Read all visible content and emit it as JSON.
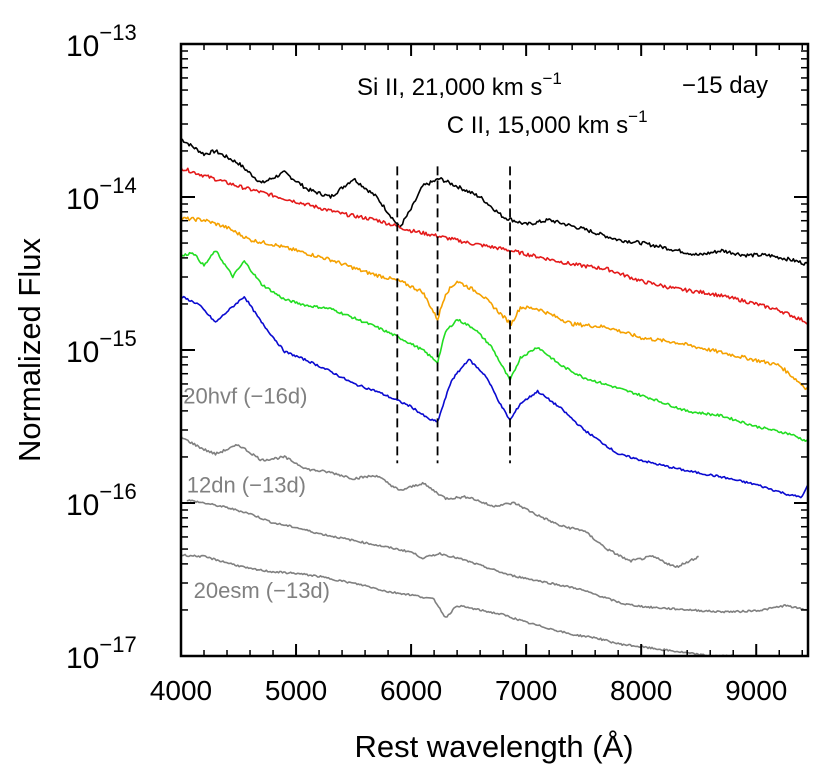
{
  "chart_data": {
    "type": "line",
    "title": "",
    "xlabel": "Rest wavelength (Å)",
    "ylabel": "Normalized Flux",
    "xlim": [
      4000,
      9450
    ],
    "ylim_log10": [
      -17,
      -13
    ],
    "y_scale": "log",
    "grid": false,
    "x_ticks": [
      4000,
      5000,
      6000,
      7000,
      8000,
      9000
    ],
    "x_tick_labels": [
      "4000",
      "5000",
      "6000",
      "7000",
      "8000",
      "9000"
    ],
    "y_ticks": [
      {
        "base": "10",
        "exp": "−13",
        "value": -13
      },
      {
        "base": "10",
        "exp": "−14",
        "value": -14
      },
      {
        "base": "10",
        "exp": "−15",
        "value": -15
      },
      {
        "base": "10",
        "exp": "−16",
        "value": -16
      },
      {
        "base": "10",
        "exp": "−17",
        "value": -17
      }
    ],
    "epoch_label": "−15 day",
    "line_markers": [
      {
        "wavelengths": [
          5880
        ],
        "label": "Si II, 21,000 km s",
        "sup": "−1",
        "label_at": [
          5530,
          16.0
        ]
      },
      {
        "wavelengths": [
          6230,
          6860
        ],
        "label": "C II, 15,000 km s",
        "sup": "−1",
        "label_at": [
          6310,
          16.6
        ]
      }
    ],
    "marker_ylog_range": [
      -13.8,
      -15.74
    ],
    "series": [
      {
        "color": "#000000",
        "noise": 0.012,
        "points": [
          [
            4000,
            -13.62
          ],
          [
            4200,
            -13.72
          ],
          [
            4300,
            -13.7
          ],
          [
            4500,
            -13.78
          ],
          [
            4700,
            -13.91
          ],
          [
            4900,
            -13.84
          ],
          [
            5100,
            -13.95
          ],
          [
            5300,
            -14.0
          ],
          [
            5500,
            -13.88
          ],
          [
            5700,
            -14.0
          ],
          [
            5800,
            -14.1
          ],
          [
            5900,
            -14.2
          ],
          [
            6000,
            -14.08
          ],
          [
            6100,
            -13.93
          ],
          [
            6250,
            -13.88
          ],
          [
            6400,
            -13.93
          ],
          [
            6600,
            -14.0
          ],
          [
            6800,
            -14.13
          ],
          [
            7000,
            -14.18
          ],
          [
            7200,
            -14.15
          ],
          [
            7500,
            -14.21
          ],
          [
            7800,
            -14.28
          ],
          [
            8000,
            -14.3
          ],
          [
            8200,
            -14.33
          ],
          [
            8500,
            -14.38
          ],
          [
            8700,
            -14.35
          ],
          [
            8900,
            -14.38
          ],
          [
            9100,
            -14.38
          ],
          [
            9300,
            -14.41
          ],
          [
            9450,
            -14.44
          ]
        ]
      },
      {
        "color": "#e41a1a",
        "noise": 0.012,
        "points": [
          [
            4000,
            -13.81
          ],
          [
            4200,
            -13.86
          ],
          [
            4500,
            -13.93
          ],
          [
            4800,
            -13.99
          ],
          [
            5100,
            -14.05
          ],
          [
            5400,
            -14.11
          ],
          [
            5700,
            -14.15
          ],
          [
            6000,
            -14.22
          ],
          [
            6200,
            -14.25
          ],
          [
            6500,
            -14.3
          ],
          [
            6800,
            -14.34
          ],
          [
            7100,
            -14.39
          ],
          [
            7400,
            -14.44
          ],
          [
            7700,
            -14.47
          ],
          [
            8000,
            -14.55
          ],
          [
            8300,
            -14.6
          ],
          [
            8600,
            -14.63
          ],
          [
            8900,
            -14.68
          ],
          [
            9200,
            -14.74
          ],
          [
            9450,
            -14.82
          ]
        ]
      },
      {
        "color": "#f5a100",
        "noise": 0.012,
        "points": [
          [
            4000,
            -14.14
          ],
          [
            4200,
            -14.15
          ],
          [
            4400,
            -14.2
          ],
          [
            4600,
            -14.28
          ],
          [
            4800,
            -14.31
          ],
          [
            5000,
            -14.35
          ],
          [
            5300,
            -14.41
          ],
          [
            5600,
            -14.49
          ],
          [
            5900,
            -14.55
          ],
          [
            6100,
            -14.62
          ],
          [
            6230,
            -14.8
          ],
          [
            6300,
            -14.63
          ],
          [
            6400,
            -14.55
          ],
          [
            6600,
            -14.63
          ],
          [
            6800,
            -14.78
          ],
          [
            6870,
            -14.83
          ],
          [
            6950,
            -14.72
          ],
          [
            7100,
            -14.73
          ],
          [
            7400,
            -14.83
          ],
          [
            7700,
            -14.85
          ],
          [
            8000,
            -14.92
          ],
          [
            8300,
            -14.95
          ],
          [
            8600,
            -15.0
          ],
          [
            8900,
            -15.05
          ],
          [
            9200,
            -15.1
          ],
          [
            9450,
            -15.26
          ]
        ]
      },
      {
        "color": "#22dd22",
        "noise": 0.008,
        "points": [
          [
            4000,
            -14.39
          ],
          [
            4100,
            -14.36
          ],
          [
            4200,
            -14.45
          ],
          [
            4300,
            -14.35
          ],
          [
            4450,
            -14.52
          ],
          [
            4550,
            -14.42
          ],
          [
            4700,
            -14.57
          ],
          [
            4900,
            -14.67
          ],
          [
            5100,
            -14.71
          ],
          [
            5300,
            -14.73
          ],
          [
            5500,
            -14.79
          ],
          [
            5700,
            -14.85
          ],
          [
            5900,
            -14.92
          ],
          [
            6100,
            -15.0
          ],
          [
            6230,
            -15.08
          ],
          [
            6300,
            -14.88
          ],
          [
            6400,
            -14.8
          ],
          [
            6550,
            -14.86
          ],
          [
            6700,
            -14.98
          ],
          [
            6860,
            -15.2
          ],
          [
            6950,
            -15.05
          ],
          [
            7100,
            -14.98
          ],
          [
            7300,
            -15.1
          ],
          [
            7500,
            -15.18
          ],
          [
            7800,
            -15.25
          ],
          [
            8100,
            -15.32
          ],
          [
            8400,
            -15.4
          ],
          [
            8700,
            -15.43
          ],
          [
            9000,
            -15.5
          ],
          [
            9300,
            -15.55
          ],
          [
            9450,
            -15.6
          ]
        ]
      },
      {
        "color": "#0a0ad0",
        "noise": 0.007,
        "points": [
          [
            4000,
            -14.65
          ],
          [
            4150,
            -14.7
          ],
          [
            4300,
            -14.82
          ],
          [
            4400,
            -14.75
          ],
          [
            4550,
            -14.65
          ],
          [
            4700,
            -14.82
          ],
          [
            4900,
            -15.01
          ],
          [
            5100,
            -15.07
          ],
          [
            5300,
            -15.14
          ],
          [
            5500,
            -15.22
          ],
          [
            5700,
            -15.27
          ],
          [
            5880,
            -15.33
          ],
          [
            6000,
            -15.37
          ],
          [
            6150,
            -15.45
          ],
          [
            6230,
            -15.47
          ],
          [
            6350,
            -15.2
          ],
          [
            6500,
            -15.06
          ],
          [
            6650,
            -15.17
          ],
          [
            6780,
            -15.36
          ],
          [
            6860,
            -15.46
          ],
          [
            6950,
            -15.35
          ],
          [
            7100,
            -15.27
          ],
          [
            7300,
            -15.38
          ],
          [
            7500,
            -15.52
          ],
          [
            7800,
            -15.68
          ],
          [
            8100,
            -15.74
          ],
          [
            8400,
            -15.79
          ],
          [
            8700,
            -15.83
          ],
          [
            9000,
            -15.88
          ],
          [
            9300,
            -15.95
          ],
          [
            9400,
            -15.96
          ],
          [
            9450,
            -15.88
          ]
        ]
      },
      {
        "color": "#808080",
        "noise": 0.008,
        "points": [
          [
            4000,
            -15.57
          ],
          [
            4200,
            -15.65
          ],
          [
            4300,
            -15.68
          ],
          [
            4500,
            -15.62
          ],
          [
            4700,
            -15.72
          ],
          [
            4900,
            -15.7
          ],
          [
            5100,
            -15.78
          ],
          [
            5300,
            -15.8
          ],
          [
            5500,
            -15.84
          ],
          [
            5700,
            -15.82
          ],
          [
            5900,
            -15.92
          ],
          [
            6100,
            -15.87
          ],
          [
            6300,
            -15.97
          ],
          [
            6500,
            -15.96
          ],
          [
            6700,
            -16.02
          ],
          [
            6900,
            -16.0
          ],
          [
            7100,
            -16.08
          ],
          [
            7300,
            -16.15
          ],
          [
            7500,
            -16.18
          ],
          [
            7700,
            -16.3
          ],
          [
            7900,
            -16.38
          ],
          [
            8100,
            -16.35
          ],
          [
            8300,
            -16.42
          ],
          [
            8500,
            -16.35
          ]
        ]
      },
      {
        "color": "#808080",
        "noise": 0.006,
        "points": [
          [
            4050,
            -15.98
          ],
          [
            4200,
            -16.0
          ],
          [
            4400,
            -16.03
          ],
          [
            4600,
            -16.07
          ],
          [
            4800,
            -16.13
          ],
          [
            5000,
            -16.16
          ],
          [
            5200,
            -16.2
          ],
          [
            5400,
            -16.23
          ],
          [
            5600,
            -16.26
          ],
          [
            5800,
            -16.29
          ],
          [
            6000,
            -16.32
          ],
          [
            6100,
            -16.36
          ],
          [
            6250,
            -16.33
          ],
          [
            6450,
            -16.37
          ],
          [
            6650,
            -16.42
          ],
          [
            6850,
            -16.47
          ],
          [
            7050,
            -16.5
          ],
          [
            7250,
            -16.53
          ],
          [
            7450,
            -16.56
          ],
          [
            7650,
            -16.61
          ],
          [
            7850,
            -16.66
          ],
          [
            8050,
            -16.68
          ],
          [
            8250,
            -16.69
          ],
          [
            8450,
            -16.7
          ],
          [
            8650,
            -16.71
          ],
          [
            8850,
            -16.71
          ],
          [
            9050,
            -16.7
          ],
          [
            9250,
            -16.67
          ],
          [
            9450,
            -16.7
          ]
        ]
      },
      {
        "color": "#808080",
        "noise": 0.006,
        "points": [
          [
            4000,
            -16.34
          ],
          [
            4200,
            -16.35
          ],
          [
            4400,
            -16.39
          ],
          [
            4600,
            -16.43
          ],
          [
            4800,
            -16.45
          ],
          [
            5000,
            -16.46
          ],
          [
            5200,
            -16.48
          ],
          [
            5400,
            -16.51
          ],
          [
            5600,
            -16.54
          ],
          [
            5800,
            -16.58
          ],
          [
            6000,
            -16.6
          ],
          [
            6200,
            -16.63
          ],
          [
            6300,
            -16.75
          ],
          [
            6400,
            -16.67
          ],
          [
            6600,
            -16.7
          ],
          [
            6800,
            -16.73
          ],
          [
            7000,
            -16.78
          ],
          [
            7200,
            -16.82
          ],
          [
            7400,
            -16.86
          ],
          [
            7600,
            -16.88
          ],
          [
            7800,
            -16.92
          ],
          [
            8000,
            -16.94
          ],
          [
            8200,
            -16.96
          ],
          [
            8400,
            -16.98
          ],
          [
            8600,
            -17.0
          ],
          [
            8800,
            -17.0
          ]
        ]
      }
    ],
    "annotations": [
      {
        "text": "20hvf (−16d)",
        "color": "#808080",
        "at": [
          4020,
          -15.35
        ]
      },
      {
        "text": "12dn (−13d)",
        "color": "#808080",
        "at": [
          4050,
          -15.93
        ]
      },
      {
        "text": "20esm (−13d)",
        "color": "#808080",
        "at": [
          4110,
          -16.62
        ]
      }
    ]
  }
}
